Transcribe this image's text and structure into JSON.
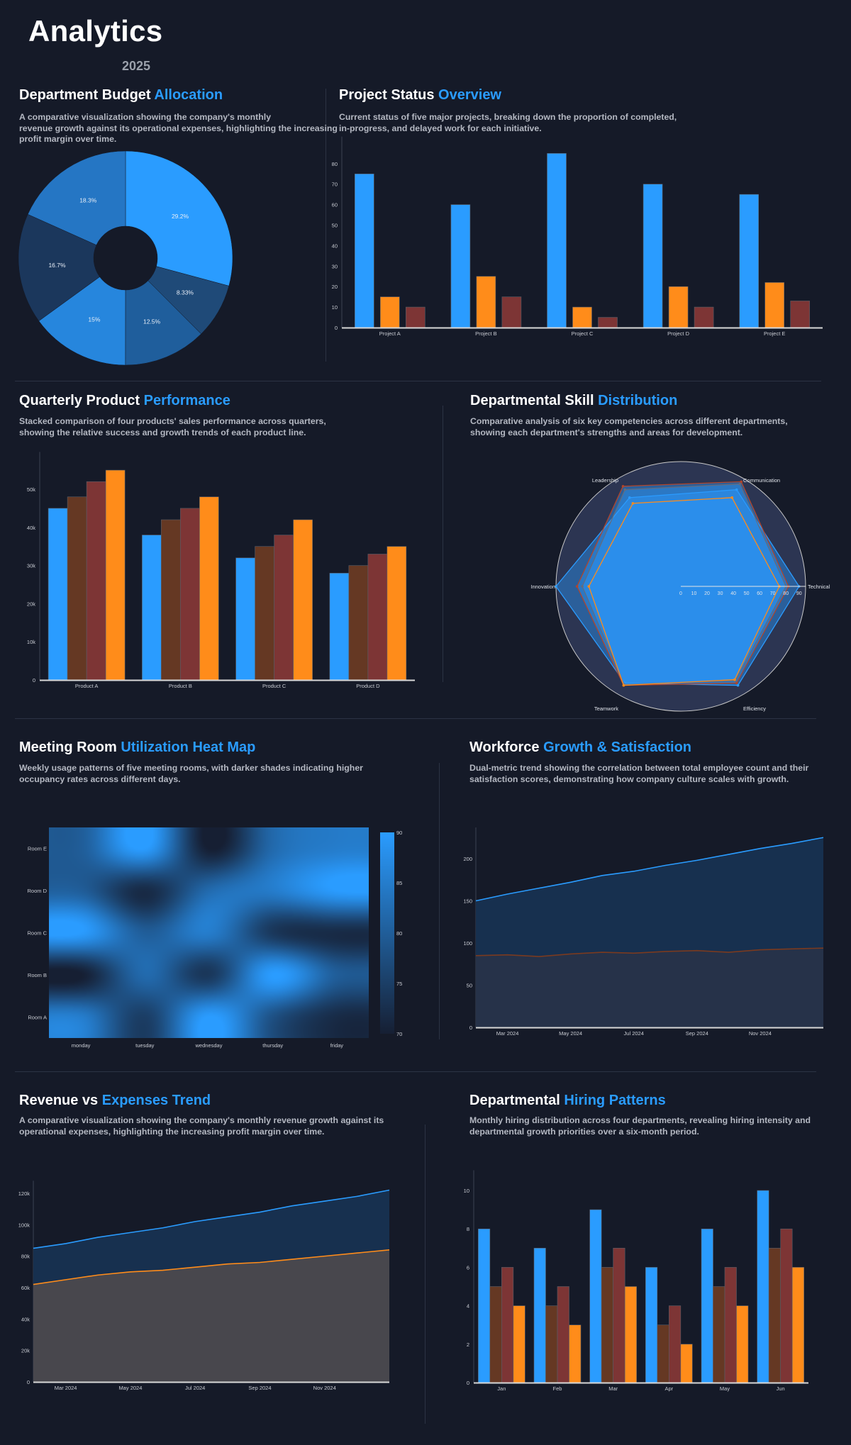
{
  "header": {
    "title": "Analytics",
    "year": "2025"
  },
  "sections": [
    {
      "title": "Department Budget",
      "accent": "Allocation",
      "description": [
        "A comparative visualization showing the company's monthly",
        "revenue growth against its operational expenses, highlighting the increasing",
        "profit margin over time."
      ]
    },
    {
      "title": "Project Status",
      "accent": "Overview",
      "description": [
        "Current status of five major projects, breaking down the proportion of completed,",
        "in-progress, and delayed work for each initiative."
      ]
    },
    {
      "title": "Quarterly Product",
      "accent": "Performance",
      "description": [
        "Stacked comparison of four products' sales performance across quarters,",
        "showing the relative success and growth trends of each product line."
      ]
    },
    {
      "title": "Departmental Skill",
      "accent": "Distribution",
      "description": [
        "Comparative analysis of six key competencies across different departments,",
        "showing each department's strengths and areas for development."
      ]
    },
    {
      "title": "Meeting Room",
      "accent": "Utilization Heat Map",
      "description": [
        "Weekly usage patterns of five meeting rooms, with darker shades indicating higher",
        "occupancy rates across different days."
      ]
    },
    {
      "title": "Workforce",
      "accent": "Growth & Satisfaction",
      "description": [
        "Dual-metric trend showing the correlation between total employee count and their",
        "satisfaction scores, demonstrating how company culture scales with growth."
      ]
    },
    {
      "title": "Revenue vs",
      "accent": "Expenses Trend",
      "description": [
        "A comparative visualization showing the company's monthly revenue growth against its",
        "operational expenses, highlighting the increasing profit margin over time."
      ]
    },
    {
      "title": "Departmental",
      "accent": "Hiring Patterns",
      "description": [
        "Monthly hiring distribution across four departments, revealing hiring intensity and",
        "departmental growth priorities over a six-month period."
      ]
    }
  ],
  "colors": {
    "background": "#151a28",
    "accent": "#2a9cff",
    "orange": "#ff8c1a",
    "red": "#7d3535",
    "brown": "#653823"
  },
  "chart_data": [
    {
      "type": "pie",
      "hole": true,
      "values": [
        29.2,
        8.33,
        12.5,
        15,
        16.7,
        18.3
      ],
      "labels": [
        "29.2%",
        "8.33%",
        "12.5%",
        "15%",
        "16.7%",
        "18.3%"
      ],
      "colors": [
        "#2a9cff",
        "#1f4a78",
        "#1f5e9c",
        "#2686dd",
        "#1b375c",
        "#2576c4"
      ]
    },
    {
      "type": "bar",
      "categories": [
        "Project A",
        "Project B",
        "Project C",
        "Project D",
        "Project E"
      ],
      "series": [
        {
          "values": [
            75,
            60,
            85,
            70,
            65
          ],
          "color": "#2a9cff"
        },
        {
          "values": [
            15,
            25,
            10,
            20,
            22
          ],
          "color": "#ff8c1a"
        },
        {
          "values": [
            10,
            15,
            5,
            10,
            13
          ],
          "color": "#7d3535"
        }
      ],
      "yticks": [
        "0",
        "10",
        "20",
        "30",
        "40",
        "50",
        "60",
        "70",
        "80"
      ],
      "ylim": [
        0,
        88
      ]
    },
    {
      "type": "bar",
      "categories": [
        "Product A",
        "Product B",
        "Product C",
        "Product D"
      ],
      "series": [
        {
          "values": [
            45000,
            38000,
            32000,
            28000
          ],
          "color": "#2a9cff"
        },
        {
          "values": [
            48000,
            42000,
            35000,
            30000
          ],
          "color": "#653823"
        },
        {
          "values": [
            52000,
            45000,
            38000,
            33000
          ],
          "color": "#7d3535"
        },
        {
          "values": [
            55000,
            48000,
            42000,
            35000
          ],
          "color": "#ff8c1a"
        }
      ],
      "yticks": [
        "0",
        "10k",
        "20k",
        "30k",
        "40k",
        "50k"
      ],
      "ytick_values": [
        0,
        10000,
        20000,
        30000,
        40000,
        50000
      ],
      "ylim": [
        0,
        57000
      ]
    },
    {
      "type": "radar",
      "axes": [
        "Technical",
        "Communication",
        "Leadership",
        "Innovation",
        "Teamwork",
        "Efficiency"
      ],
      "range": [
        0,
        95
      ],
      "ticks": [
        "0",
        "10",
        "20",
        "30",
        "40",
        "50",
        "60",
        "70",
        "80",
        "90"
      ],
      "series": [
        {
          "values": [
            90,
            85,
            78,
            95,
            85,
            87
          ],
          "color": "#2a9cff"
        },
        {
          "values": [
            80,
            90,
            85,
            75,
            86,
            83
          ],
          "color": "#8a4a25"
        },
        {
          "values": [
            82,
            92,
            88,
            79,
            87,
            85
          ],
          "color": "#b2452a"
        },
        {
          "values": [
            75,
            78,
            73,
            70,
            87,
            82
          ],
          "color": "#ff8c1a"
        }
      ]
    },
    {
      "type": "heatmap",
      "x": [
        "monday",
        "tuesday",
        "wednesday",
        "thursday",
        "friday"
      ],
      "y": [
        "Room A",
        "Room B",
        "Room C",
        "Room D",
        "Room E"
      ],
      "z": [
        [
          85,
          75,
          90,
          78,
          72
        ],
        [
          70,
          82,
          74,
          90,
          80
        ],
        [
          90,
          80,
          85,
          74,
          72
        ],
        [
          80,
          72,
          82,
          85,
          90
        ],
        [
          80,
          90,
          70,
          82,
          85
        ]
      ],
      "zrange": [
        70,
        90
      ],
      "colorbar_ticks": [
        "70",
        "75",
        "80",
        "85",
        "90"
      ],
      "colorscale": [
        "#161f33",
        "#2a9cff"
      ]
    },
    {
      "type": "area",
      "x": [
        "Feb 2024",
        "Mar 2024",
        "Apr 2024",
        "May 2024",
        "Jun 2024",
        "Jul 2024",
        "Aug 2024",
        "Sep 2024",
        "Oct 2024",
        "Nov 2024",
        "Dec 2024",
        "Jan 2025"
      ],
      "xticks": [
        "Mar 2024",
        "May 2024",
        "Jul 2024",
        "Sep 2024",
        "Nov 2024"
      ],
      "series": [
        {
          "values": [
            150,
            158,
            165,
            172,
            180,
            185,
            192,
            198,
            205,
            212,
            218,
            225
          ],
          "color": "#2a9cff",
          "fill": "#17304f"
        },
        {
          "values": [
            85,
            86,
            84,
            87,
            89,
            88,
            90,
            91,
            89,
            92,
            93,
            94
          ],
          "color": "#7a3a1f",
          "fill": "#263249"
        }
      ],
      "yticks": [
        "0",
        "50",
        "100",
        "150",
        "200"
      ],
      "ytick_values": [
        0,
        50,
        100,
        150,
        200
      ],
      "ylim": [
        0,
        237
      ]
    },
    {
      "type": "area",
      "x": [
        "Feb 2024",
        "Mar 2024",
        "Apr 2024",
        "May 2024",
        "Jun 2024",
        "Jul 2024",
        "Aug 2024",
        "Sep 2024",
        "Oct 2024",
        "Nov 2024",
        "Dec 2024",
        "Jan 2025"
      ],
      "xticks": [
        "Mar 2024",
        "May 2024",
        "Jul 2024",
        "Sep 2024",
        "Nov 2024"
      ],
      "series": [
        {
          "values": [
            85000,
            88000,
            92000,
            95000,
            98000,
            102000,
            105000,
            108000,
            112000,
            115000,
            118000,
            122000
          ],
          "color": "#2a9cff",
          "fill": "#17304f"
        },
        {
          "values": [
            62000,
            65000,
            68000,
            70000,
            71000,
            73000,
            75000,
            76000,
            78000,
            80000,
            82000,
            84000
          ],
          "color": "#ff8c1a",
          "fill": "#48474d"
        }
      ],
      "yticks": [
        "0",
        "20k",
        "40k",
        "60k",
        "80k",
        "100k",
        "120k"
      ],
      "ytick_values": [
        0,
        20000,
        40000,
        60000,
        80000,
        100000,
        120000
      ],
      "ylim": [
        0,
        128000
      ]
    },
    {
      "type": "bar",
      "categories": [
        "Jan",
        "Feb",
        "Mar",
        "Apr",
        "May",
        "Jun"
      ],
      "series": [
        {
          "values": [
            8,
            7,
            9,
            6,
            8,
            10
          ],
          "color": "#2a9cff"
        },
        {
          "values": [
            5,
            4,
            6,
            3,
            5,
            7
          ],
          "color": "#653823"
        },
        {
          "values": [
            6,
            5,
            7,
            4,
            6,
            8
          ],
          "color": "#7d3535"
        },
        {
          "values": [
            4,
            3,
            5,
            2,
            4,
            6
          ],
          "color": "#ff8c1a"
        }
      ],
      "yticks": [
        "0",
        "2",
        "4",
        "6",
        "8",
        "10"
      ],
      "ytick_values": [
        0,
        2,
        4,
        6,
        8,
        10
      ],
      "ylim": [
        0,
        10.5
      ]
    }
  ]
}
